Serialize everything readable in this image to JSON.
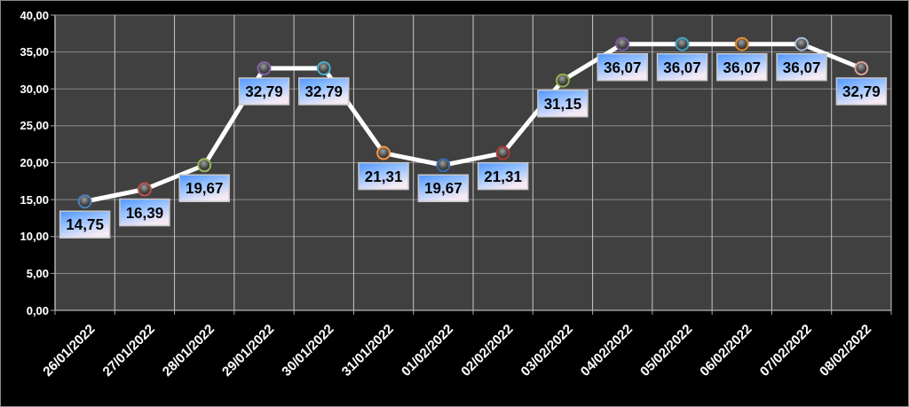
{
  "chart_data": {
    "type": "line",
    "categories": [
      "26/01/2022",
      "27/01/2022",
      "28/01/2022",
      "29/01/2022",
      "30/01/2022",
      "31/01/2022",
      "01/02/2022",
      "02/02/2022",
      "03/02/2022",
      "04/02/2022",
      "05/02/2022",
      "06/02/2022",
      "07/02/2022",
      "08/02/2022"
    ],
    "series": [
      {
        "color": "#ffffff",
        "colors": [
          "#4f81bd",
          "#c0504d",
          "#9bbb59",
          "#8064a2",
          "#4bacc6",
          "#f79646",
          "#3a6aa8",
          "#b03a36",
          "#8fb04a",
          "#7a5ca0",
          "#3aa5c0",
          "#e8892e",
          "#a7b9d6",
          "#d9a0a0"
        ],
        "values": [
          14.75,
          16.39,
          19.67,
          32.79,
          32.79,
          21.31,
          19.67,
          21.31,
          31.15,
          36.07,
          36.07,
          36.07,
          36.07,
          32.79
        ],
        "value_labels": [
          "14,75",
          "16,39",
          "19,67",
          "32,79",
          "32,79",
          "21,31",
          "19,67",
          "21,31",
          "31,15",
          "36,07",
          "36,07",
          "36,07",
          "36,07",
          "32,79"
        ]
      }
    ],
    "ylim": [
      0,
      40
    ],
    "yticks": [
      {
        "value": 0,
        "label": "0,00"
      },
      {
        "value": 5,
        "label": "5,00"
      },
      {
        "value": 10,
        "label": "10,00"
      },
      {
        "value": 15,
        "label": "15,00"
      },
      {
        "value": 20,
        "label": "20,00"
      },
      {
        "value": 25,
        "label": "25,00"
      },
      {
        "value": 30,
        "label": "30,00"
      },
      {
        "value": 35,
        "label": "35,00"
      },
      {
        "value": 40,
        "label": "40,00"
      }
    ],
    "grid": true,
    "marker": "circle",
    "line_style": "solid"
  }
}
